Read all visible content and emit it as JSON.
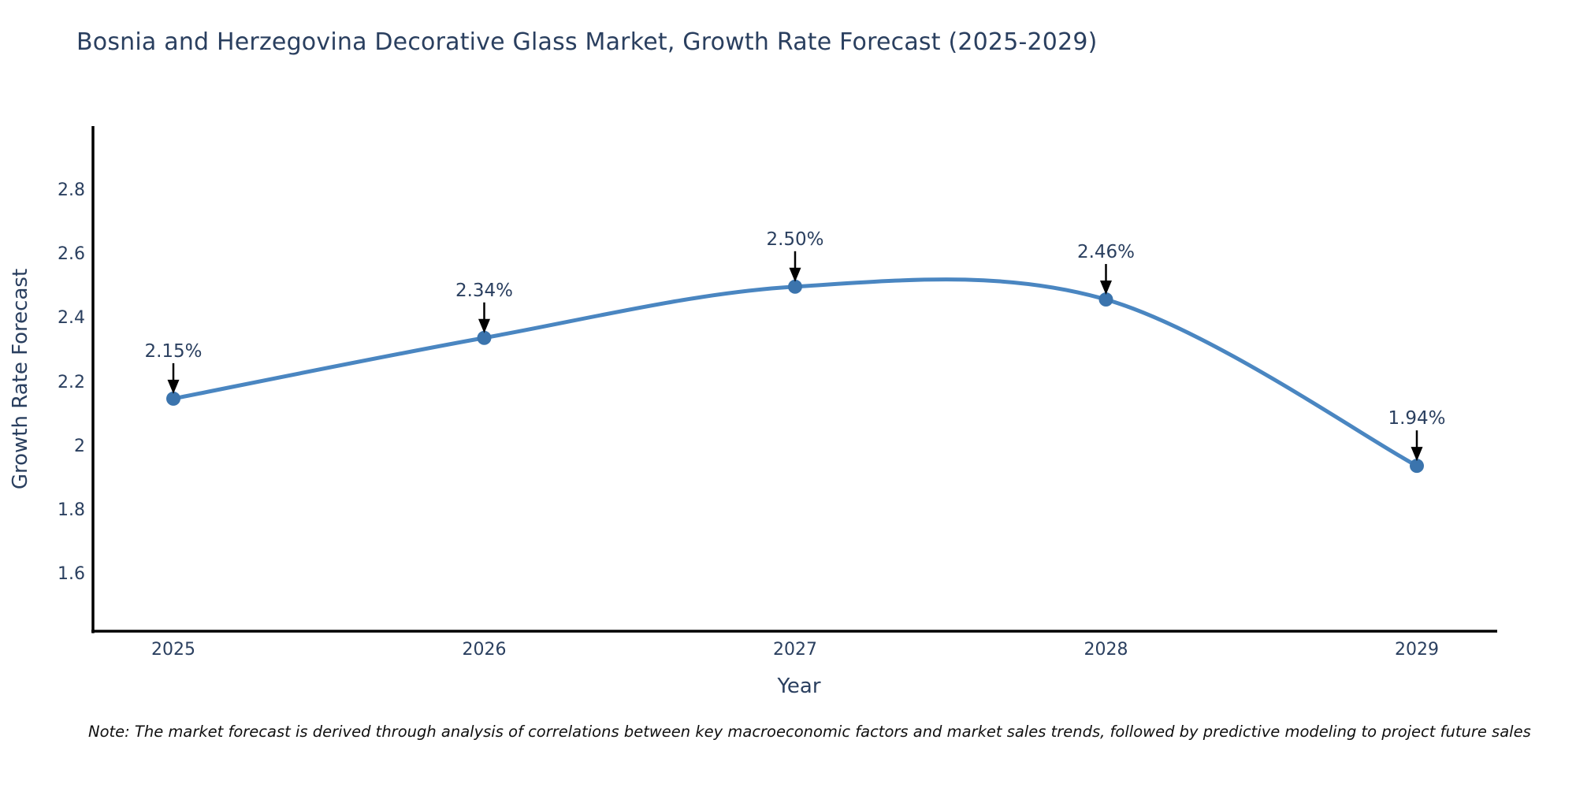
{
  "header": {
    "title": "Bosnia and Herzegovina Decorative Glass Market, Growth Rate Forecast (2025-2029)"
  },
  "note": {
    "text": "Note: The market forecast is derived through analysis of correlations between key macroeconomic factors and market sales trends, followed by predictive modeling to project future sales"
  },
  "chart_data": {
    "type": "line",
    "title": "Bosnia and Herzegovina Decorative Glass Market, Growth Rate Forecast (2025-2029)",
    "xlabel": "Year",
    "ylabel": "Growth Rate Forecast",
    "x": [
      2025,
      2026,
      2027,
      2028,
      2029
    ],
    "series": [
      {
        "name": "Growth Rate Forecast",
        "values": [
          2.15,
          2.34,
          2.5,
          2.46,
          1.94
        ]
      }
    ],
    "point_labels": [
      "2.15%",
      "2.34%",
      "2.50%",
      "2.46%",
      "1.94%"
    ],
    "x_tick_labels": [
      "2025",
      "2026",
      "2027",
      "2028",
      "2029"
    ],
    "y_tick_labels": [
      "2.8",
      "2.6",
      "2.4",
      "2.2",
      "2",
      "1.8",
      "1.6"
    ],
    "y_tick_values": [
      2.8,
      2.6,
      2.4,
      2.2,
      2.0,
      1.8,
      1.6
    ],
    "ylim": [
      1.43,
      3.0
    ],
    "grid": false,
    "legend": "none",
    "smooth": true,
    "colors": {
      "line": "#4a86c1",
      "marker": "#3b74ad",
      "axis": "#000000",
      "annotation_arrow": "#000000",
      "text": "#2a3f5f",
      "note_text": "#101010",
      "background": "#ffffff"
    }
  }
}
